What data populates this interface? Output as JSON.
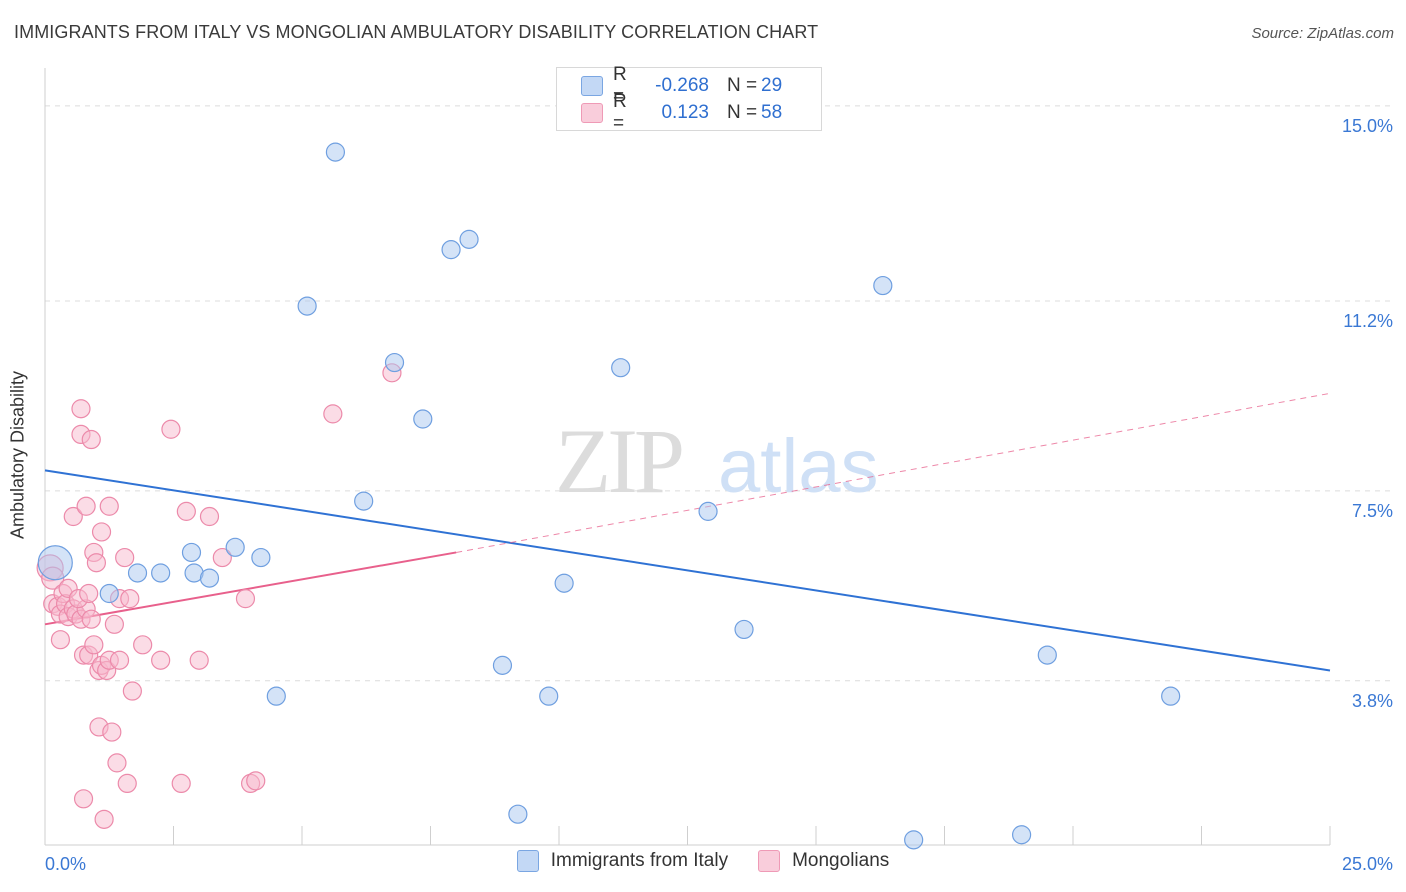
{
  "title": "IMMIGRANTS FROM ITALY VS MONGOLIAN AMBULATORY DISABILITY CORRELATION CHART",
  "source": "Source: ZipAtlas.com",
  "watermark": {
    "zip": "ZIP",
    "atlas": "atlas"
  },
  "legend_top": [
    {
      "r_label": "R =",
      "r_value": "-0.268",
      "n_label": "N =",
      "n_value": "29"
    },
    {
      "r_label": "R =",
      "r_value": "0.123",
      "n_label": "N =",
      "n_value": "58"
    }
  ],
  "legend_bottom": [
    {
      "label": "Immigrants from Italy"
    },
    {
      "label": "Mongolians"
    }
  ],
  "colors": {
    "italy_fill": "#a9c8f0",
    "italy_stroke": "#6f9fe0",
    "italy_line": "#2f72d4",
    "mongol_fill": "#f7b9cd",
    "mongol_stroke": "#ec8aaa",
    "mongol_line": "#e8608c",
    "axis_text": "#3a78d4",
    "grid": "#dcdcdc"
  },
  "chart_data": {
    "type": "scatter",
    "title": "IMMIGRANTS FROM ITALY VS MONGOLIAN AMBULATORY DISABILITY CORRELATION CHART",
    "xlabel": "",
    "ylabel": "Ambulatory Disability",
    "xlim": [
      0,
      25
    ],
    "ylim": [
      0.6,
      15.7
    ],
    "x_tick_labels": [
      {
        "value": 0,
        "label": "0.0%"
      },
      {
        "value": 25,
        "label": "25.0%"
      }
    ],
    "y_ticks": [
      {
        "value": 3.8,
        "label": "3.8%"
      },
      {
        "value": 7.5,
        "label": "7.5%"
      },
      {
        "value": 11.2,
        "label": "11.2%"
      },
      {
        "value": 15.0,
        "label": "15.0%"
      }
    ],
    "x_minor_ticks": [
      0,
      2.5,
      5,
      7.5,
      10,
      12.5,
      15,
      17.5,
      20,
      22.5,
      25
    ],
    "series": [
      {
        "name": "Immigrants from Italy",
        "r": -0.268,
        "n": 29,
        "trend": {
          "x": [
            0,
            25
          ],
          "y": [
            7.9,
            4.0
          ]
        },
        "points": [
          [
            0.2,
            6.1,
            34
          ],
          [
            1.25,
            5.5,
            18
          ],
          [
            1.8,
            5.9,
            18
          ],
          [
            2.25,
            5.9,
            18
          ],
          [
            2.9,
            5.9,
            18
          ],
          [
            2.85,
            6.3,
            18
          ],
          [
            3.2,
            5.8,
            18
          ],
          [
            3.7,
            6.4,
            18
          ],
          [
            4.2,
            6.2,
            18
          ],
          [
            4.5,
            3.5,
            18
          ],
          [
            5.1,
            11.1,
            18
          ],
          [
            5.65,
            14.1,
            18
          ],
          [
            6.2,
            7.3,
            18
          ],
          [
            6.8,
            10.0,
            18
          ],
          [
            7.35,
            8.9,
            18
          ],
          [
            7.9,
            12.2,
            18
          ],
          [
            8.25,
            12.4,
            18
          ],
          [
            8.9,
            4.1,
            18
          ],
          [
            9.2,
            1.2,
            18
          ],
          [
            9.8,
            3.5,
            18
          ],
          [
            10.1,
            5.7,
            18
          ],
          [
            11.2,
            9.9,
            18
          ],
          [
            12.9,
            7.1,
            18
          ],
          [
            13.6,
            4.8,
            18
          ],
          [
            16.3,
            11.5,
            18
          ],
          [
            16.9,
            0.7,
            18
          ],
          [
            19.0,
            0.8,
            18
          ],
          [
            19.5,
            4.3,
            18
          ],
          [
            21.9,
            3.5,
            18
          ]
        ]
      },
      {
        "name": "Mongolians",
        "r": 0.123,
        "n": 58,
        "trend_solid": {
          "x": [
            0,
            8
          ],
          "y": [
            4.9,
            6.3
          ]
        },
        "trend_dashed": {
          "x": [
            8,
            25
          ],
          "y": [
            6.3,
            9.4
          ]
        },
        "points": [
          [
            0.1,
            6.0,
            26
          ],
          [
            0.15,
            5.8,
            22
          ],
          [
            0.15,
            5.3,
            18
          ],
          [
            0.25,
            5.25,
            18
          ],
          [
            0.3,
            4.6,
            18
          ],
          [
            0.3,
            5.1,
            18
          ],
          [
            0.35,
            5.5,
            18
          ],
          [
            0.4,
            5.3,
            18
          ],
          [
            0.45,
            5.6,
            18
          ],
          [
            0.45,
            5.05,
            18
          ],
          [
            0.55,
            7.0,
            18
          ],
          [
            0.55,
            5.2,
            18
          ],
          [
            0.6,
            5.1,
            18
          ],
          [
            0.75,
            4.3,
            18
          ],
          [
            0.7,
            5.0,
            18
          ],
          [
            0.8,
            5.2,
            18
          ],
          [
            0.65,
            5.4,
            18
          ],
          [
            0.85,
            5.5,
            18
          ],
          [
            0.7,
            8.6,
            18
          ],
          [
            0.7,
            9.1,
            18
          ],
          [
            0.75,
            1.5,
            18
          ],
          [
            0.8,
            7.2,
            18
          ],
          [
            0.9,
            5.0,
            18
          ],
          [
            0.85,
            4.3,
            18
          ],
          [
            0.9,
            8.5,
            18
          ],
          [
            0.95,
            6.3,
            18
          ],
          [
            1.0,
            6.1,
            18
          ],
          [
            0.95,
            4.5,
            18
          ],
          [
            1.05,
            4.0,
            18
          ],
          [
            1.05,
            2.9,
            18
          ],
          [
            1.1,
            6.7,
            18
          ],
          [
            1.1,
            4.1,
            18
          ],
          [
            1.15,
            1.1,
            18
          ],
          [
            1.2,
            4.0,
            18
          ],
          [
            1.25,
            4.2,
            18
          ],
          [
            1.25,
            7.2,
            18
          ],
          [
            1.3,
            2.8,
            18
          ],
          [
            1.35,
            4.9,
            18
          ],
          [
            1.4,
            2.2,
            18
          ],
          [
            1.45,
            5.4,
            18
          ],
          [
            1.45,
            4.2,
            18
          ],
          [
            1.55,
            6.2,
            18
          ],
          [
            1.6,
            1.8,
            18
          ],
          [
            1.65,
            5.4,
            18
          ],
          [
            1.7,
            3.6,
            18
          ],
          [
            1.9,
            4.5,
            18
          ],
          [
            2.25,
            4.2,
            18
          ],
          [
            2.45,
            8.7,
            18
          ],
          [
            2.65,
            1.8,
            18
          ],
          [
            2.75,
            7.1,
            18
          ],
          [
            3.0,
            4.2,
            18
          ],
          [
            3.2,
            7.0,
            18
          ],
          [
            3.45,
            6.2,
            18
          ],
          [
            3.9,
            5.4,
            18
          ],
          [
            4.0,
            1.8,
            18
          ],
          [
            4.1,
            1.85,
            18
          ],
          [
            5.6,
            9.0,
            18
          ],
          [
            6.75,
            9.8,
            18
          ]
        ]
      }
    ]
  }
}
